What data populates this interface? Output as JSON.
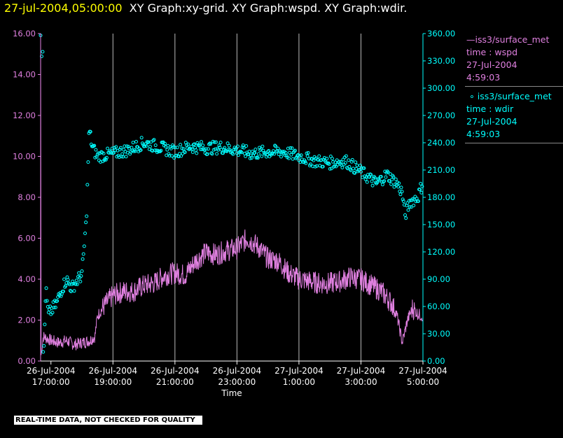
{
  "title": {
    "timestamp": "27-jul-2004,05:00:00",
    "graphs": "XY Graph:xy-grid.  XY Graph:wspd.  XY Graph:wdir."
  },
  "legend": [
    {
      "symbol": "line",
      "color": "#e080e0",
      "name": "iss3/surface_met",
      "field": "time : wspd",
      "date": "27-Jul-2004",
      "time": "4:59:03"
    },
    {
      "symbol": "circle",
      "color": "#00ffff",
      "name": "iss3/surface_met",
      "field": "time : wdir",
      "date": "27-Jul-2004",
      "time": "4:59:03"
    }
  ],
  "qc_notice": "REAL-TIME DATA, NOT CHECKED FOR QUALITY",
  "chart_data": {
    "type": "line",
    "xlabel": "Time",
    "xlim": [
      "2004-07-26T16:40:00",
      "2004-07-27T05:00:00"
    ],
    "x_ticks": [
      {
        "date": "26-Jul-2004",
        "time": "17:00:00"
      },
      {
        "date": "26-Jul-2004",
        "time": "19:00:00"
      },
      {
        "date": "26-Jul-2004",
        "time": "21:00:00"
      },
      {
        "date": "26-Jul-2004",
        "time": "23:00:00"
      },
      {
        "date": "27-Jul-2004",
        "time": "1:00:00"
      },
      {
        "date": "27-Jul-2004",
        "time": "3:00:00"
      },
      {
        "date": "27-Jul-2004",
        "time": "5:00:00"
      }
    ],
    "left_axis": {
      "color": "#e080e0",
      "ylim": [
        0,
        16
      ],
      "ticks": [
        "0.00",
        "2.00",
        "4.00",
        "6.00",
        "8.00",
        "10.00",
        "12.00",
        "14.00",
        "16.00"
      ]
    },
    "right_axis": {
      "color": "#00ffff",
      "ylim": [
        0,
        360
      ],
      "ticks": [
        "0.00",
        "30.00",
        "60.00",
        "90.00",
        "120.00",
        "150.00",
        "180.00",
        "210.00",
        "240.00",
        "270.00",
        "300.00",
        "330.00",
        "360.00"
      ]
    },
    "vertical_grid": true,
    "series": [
      {
        "name": "iss3/surface_met time : wspd",
        "axis": "left",
        "style": "line",
        "color": "#e080e0",
        "points": [
          [
            "2004-07-26T16:40:00",
            16.0
          ],
          [
            "2004-07-26T16:41:00",
            0.3
          ],
          [
            "2004-07-26T16:45:00",
            1.2
          ],
          [
            "2004-07-26T17:00:00",
            1.0
          ],
          [
            "2004-07-26T17:15:00",
            0.9
          ],
          [
            "2004-07-26T17:30:00",
            1.0
          ],
          [
            "2004-07-26T17:45:00",
            0.8
          ],
          [
            "2004-07-26T18:00:00",
            0.9
          ],
          [
            "2004-07-26T18:15:00",
            1.0
          ],
          [
            "2004-07-26T18:25:00",
            1.2
          ],
          [
            "2004-07-26T18:30:00",
            2.2
          ],
          [
            "2004-07-26T18:40:00",
            2.6
          ],
          [
            "2004-07-26T19:00:00",
            3.2
          ],
          [
            "2004-07-26T19:20:00",
            3.4
          ],
          [
            "2004-07-26T19:40:00",
            3.4
          ],
          [
            "2004-07-26T20:00:00",
            3.7
          ],
          [
            "2004-07-26T20:20:00",
            3.8
          ],
          [
            "2004-07-26T20:40:00",
            4.2
          ],
          [
            "2004-07-26T21:00:00",
            4.3
          ],
          [
            "2004-07-26T21:20:00",
            4.2
          ],
          [
            "2004-07-26T21:40:00",
            4.9
          ],
          [
            "2004-07-26T22:00:00",
            5.3
          ],
          [
            "2004-07-26T22:20:00",
            5.2
          ],
          [
            "2004-07-26T22:40:00",
            5.4
          ],
          [
            "2004-07-26T23:00:00",
            5.5
          ],
          [
            "2004-07-26T23:20:00",
            6.0
          ],
          [
            "2004-07-26T23:40:00",
            5.6
          ],
          [
            "2004-07-27T00:00:00",
            5.0
          ],
          [
            "2004-07-27T00:20:00",
            4.9
          ],
          [
            "2004-07-27T00:40:00",
            4.3
          ],
          [
            "2004-07-27T01:00:00",
            4.0
          ],
          [
            "2004-07-27T01:20:00",
            3.9
          ],
          [
            "2004-07-27T01:40:00",
            3.8
          ],
          [
            "2004-07-27T02:00:00",
            3.8
          ],
          [
            "2004-07-27T02:20:00",
            3.9
          ],
          [
            "2004-07-27T02:40:00",
            4.1
          ],
          [
            "2004-07-27T03:00:00",
            4.0
          ],
          [
            "2004-07-27T03:20:00",
            3.7
          ],
          [
            "2004-07-27T03:40:00",
            3.4
          ],
          [
            "2004-07-27T04:00:00",
            2.8
          ],
          [
            "2004-07-27T04:10:00",
            2.2
          ],
          [
            "2004-07-27T04:20:00",
            0.9
          ],
          [
            "2004-07-27T04:30:00",
            2.0
          ],
          [
            "2004-07-27T04:40:00",
            2.6
          ],
          [
            "2004-07-27T04:50:00",
            2.3
          ],
          [
            "2004-07-27T04:59:00",
            2.2
          ]
        ]
      },
      {
        "name": "iss3/surface_met time : wdir",
        "axis": "right",
        "style": "circle",
        "color": "#00ffff",
        "points": [
          [
            "2004-07-26T16:40:00",
            358
          ],
          [
            "2004-07-26T16:42:00",
            335
          ],
          [
            "2004-07-26T16:44:00",
            340
          ],
          [
            "2004-07-26T16:45:00",
            5
          ],
          [
            "2004-07-26T16:47:00",
            20
          ],
          [
            "2004-07-26T16:50:00",
            80
          ],
          [
            "2004-07-26T16:55:00",
            50
          ],
          [
            "2004-07-26T17:00:00",
            55
          ],
          [
            "2004-07-26T17:10:00",
            62
          ],
          [
            "2004-07-26T17:20:00",
            78
          ],
          [
            "2004-07-26T17:30:00",
            90
          ],
          [
            "2004-07-26T17:40:00",
            80
          ],
          [
            "2004-07-26T17:50:00",
            88
          ],
          [
            "2004-07-26T18:00:00",
            95
          ],
          [
            "2004-07-26T18:05:00",
            130
          ],
          [
            "2004-07-26T18:08:00",
            152
          ],
          [
            "2004-07-26T18:10:00",
            180
          ],
          [
            "2004-07-26T18:12:00",
            220
          ],
          [
            "2004-07-26T18:14:00",
            255
          ],
          [
            "2004-07-26T18:20:00",
            235
          ],
          [
            "2004-07-26T18:30:00",
            225
          ],
          [
            "2004-07-26T19:00:00",
            228
          ],
          [
            "2004-07-26T19:30:00",
            232
          ],
          [
            "2004-07-26T20:00:00",
            240
          ],
          [
            "2004-07-26T20:30:00",
            235
          ],
          [
            "2004-07-26T21:00:00",
            230
          ],
          [
            "2004-07-26T21:30:00",
            236
          ],
          [
            "2004-07-26T22:00:00",
            234
          ],
          [
            "2004-07-26T22:30:00",
            235
          ],
          [
            "2004-07-26T23:00:00",
            232
          ],
          [
            "2004-07-26T23:30:00",
            228
          ],
          [
            "2004-07-27T00:00:00",
            230
          ],
          [
            "2004-07-27T00:30:00",
            230
          ],
          [
            "2004-07-27T01:00:00",
            225
          ],
          [
            "2004-07-27T01:30:00",
            220
          ],
          [
            "2004-07-27T02:00:00",
            218
          ],
          [
            "2004-07-27T02:30:00",
            220
          ],
          [
            "2004-07-27T03:00:00",
            208
          ],
          [
            "2004-07-27T03:30:00",
            195
          ],
          [
            "2004-07-27T03:50:00",
            205
          ],
          [
            "2004-07-27T04:10:00",
            195
          ],
          [
            "2004-07-27T04:20:00",
            185
          ],
          [
            "2004-07-27T04:25:00",
            160
          ],
          [
            "2004-07-27T04:35:00",
            175
          ],
          [
            "2004-07-27T04:50:00",
            180
          ],
          [
            "2004-07-27T04:59:00",
            195
          ]
        ]
      }
    ]
  }
}
